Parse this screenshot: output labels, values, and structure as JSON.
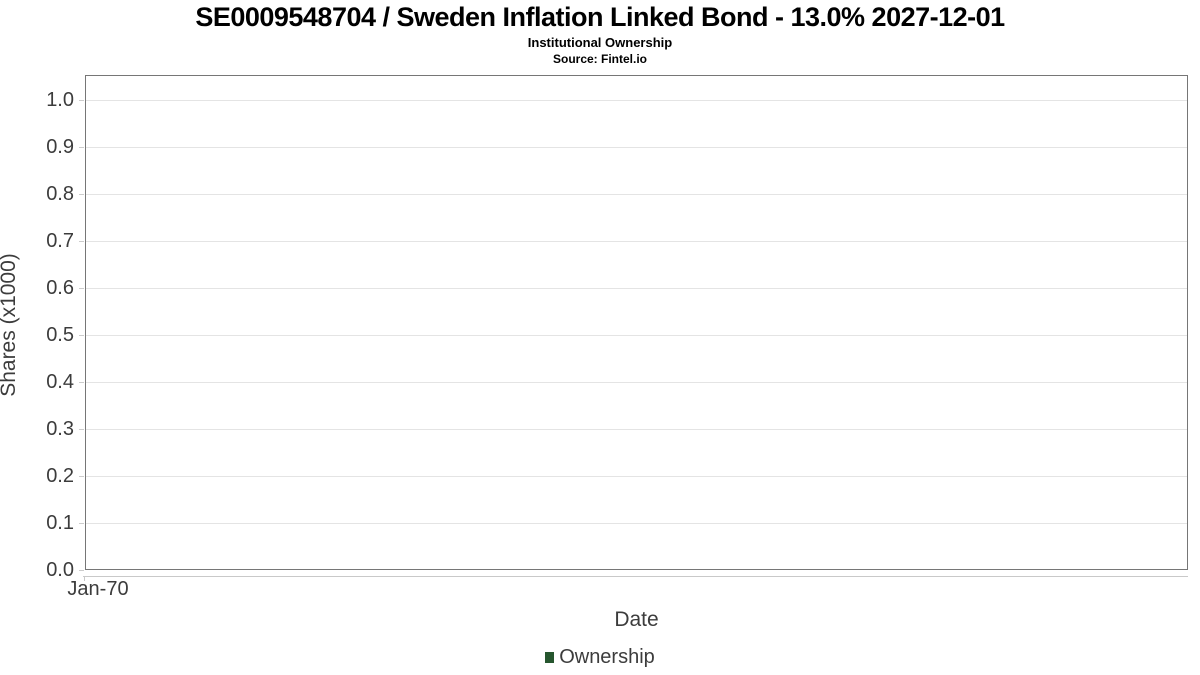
{
  "header": {
    "title": "SE0009548704 / Sweden Inflation Linked Bond - 13.0% 2027-12-01",
    "subtitle": "Institutional Ownership",
    "source": "Source: Fintel.io"
  },
  "chart_data": {
    "type": "line",
    "title": "SE0009548704 / Sweden Inflation Linked Bond - 13.0% 2027-12-01",
    "subtitle": "Institutional Ownership",
    "source": "Source: Fintel.io",
    "xlabel": "Date",
    "ylabel": "Shares (x1000)",
    "xticks": [
      "Jan-70"
    ],
    "yticks": [
      "0.0",
      "0.1",
      "0.2",
      "0.3",
      "0.4",
      "0.5",
      "0.6",
      "0.7",
      "0.8",
      "0.9",
      "1.0"
    ],
    "ylim": [
      0.0,
      1.05
    ],
    "grid": true,
    "legend_position": "bottom",
    "series": [
      {
        "name": "Ownership",
        "color": "#26562e",
        "x": [],
        "values": []
      }
    ],
    "note_no_data_points_visible": true
  },
  "legend": {
    "items": [
      {
        "label": "Ownership",
        "color": "#26562e"
      }
    ]
  },
  "colors": {
    "plot_border": "#767676",
    "gridline": "#e4e4e4",
    "tick": "#cccccc",
    "axis_text": "#3c3c3c",
    "title_text": "#000000",
    "series_ownership": "#26562e"
  }
}
